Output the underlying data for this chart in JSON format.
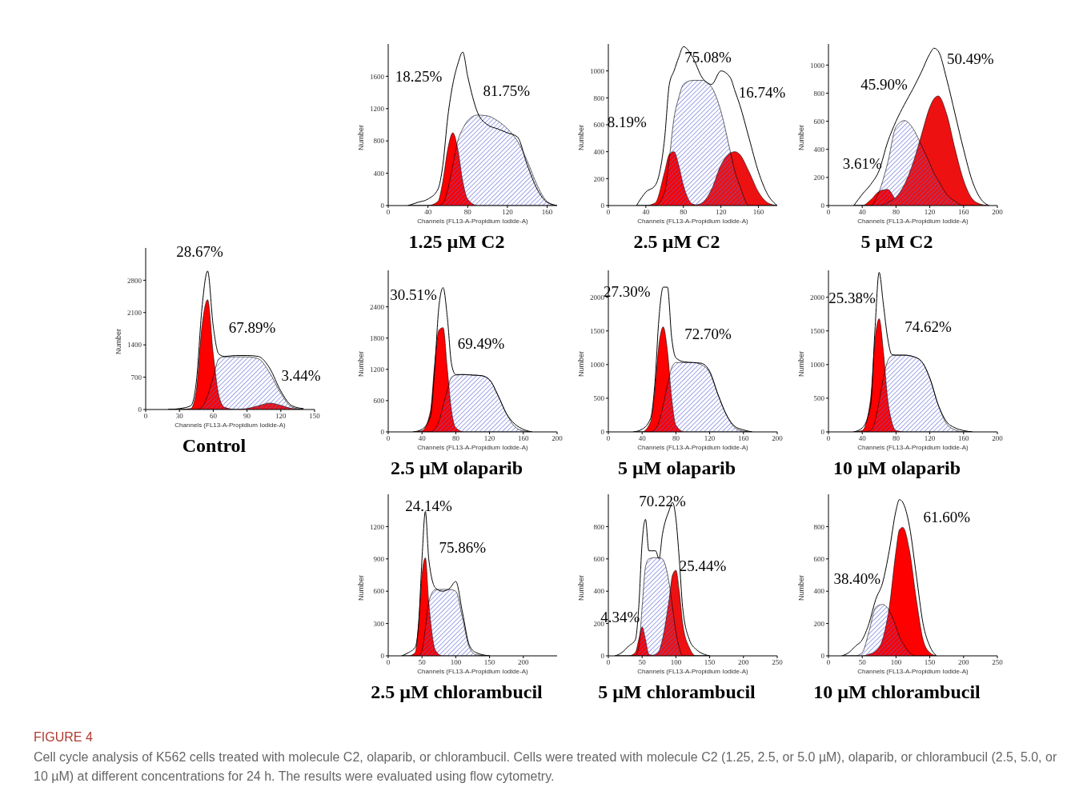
{
  "chart_data": [
    {
      "type": "area",
      "title": "1.25 µM C2",
      "xlabel": "Channels (FL13-A-Propidium Iodide-A)",
      "ylabel": "Number",
      "xlim": [
        0,
        170
      ],
      "xticks": [
        0,
        40,
        80,
        120,
        160
      ],
      "ylim": [
        0,
        2000
      ],
      "yticks": [
        0,
        400,
        800,
        1200,
        1600
      ],
      "grid": false,
      "legend": false,
      "x": [
        20,
        30,
        40,
        50,
        55,
        60,
        65,
        70,
        75,
        80,
        90,
        100,
        110,
        120,
        130,
        140,
        150,
        160,
        170
      ],
      "series": [
        {
          "type": "line",
          "color": "#000000",
          "values": [
            0,
            40,
            80,
            200,
            500,
            1100,
            1500,
            1750,
            1900,
            1600,
            1150,
            1000,
            950,
            900,
            850,
            500,
            200,
            40,
            0
          ]
        },
        {
          "color": "#5a62d6",
          "values": [
            0,
            0,
            0,
            0,
            30,
            200,
            500,
            800,
            950,
            1050,
            1120,
            1110,
            1050,
            950,
            800,
            550,
            250,
            50,
            0
          ]
        },
        {
          "color": "#ff0000",
          "values": [
            0,
            0,
            0,
            50,
            300,
            700,
            900,
            700,
            300,
            80,
            0,
            0,
            0,
            0,
            0,
            0,
            0,
            0,
            0
          ]
        }
      ],
      "annotations": [
        "18.25%",
        "81.75%"
      ]
    },
    {
      "type": "area",
      "title": "2.5 µM C2",
      "xlabel": "Channels (FL13-A-Propidium Iodide-A)",
      "ylabel": "Number",
      "xlim": [
        0,
        180
      ],
      "xticks": [
        0,
        40,
        80,
        120,
        160
      ],
      "ylim": [
        0,
        1200
      ],
      "yticks": [
        0,
        200,
        400,
        600,
        800,
        1000
      ],
      "grid": false,
      "legend": false,
      "x": [
        30,
        40,
        50,
        60,
        65,
        70,
        75,
        80,
        90,
        100,
        110,
        120,
        130,
        135,
        140,
        150,
        160,
        170,
        180
      ],
      "series": [
        {
          "type": "line",
          "color": "#000000",
          "values": [
            0,
            100,
            150,
            500,
            900,
            1000,
            1100,
            1180,
            1100,
            950,
            900,
            1000,
            950,
            850,
            750,
            500,
            250,
            80,
            0
          ]
        },
        {
          "color": "#5a62d6",
          "values": [
            0,
            0,
            0,
            100,
            350,
            650,
            800,
            900,
            930,
            930,
            880,
            700,
            400,
            250,
            150,
            0,
            0,
            0,
            0
          ]
        },
        {
          "color": "#ff0000",
          "values": [
            0,
            0,
            20,
            250,
            380,
            400,
            300,
            150,
            10,
            0,
            0,
            0,
            0,
            0,
            0,
            0,
            0,
            0,
            0
          ]
        },
        {
          "color": "#ee1111",
          "x": [
            90,
            100,
            110,
            120,
            130,
            135,
            140,
            150,
            160,
            170,
            180
          ],
          "values": [
            0,
            20,
            120,
            300,
            390,
            400,
            380,
            250,
            100,
            20,
            0
          ]
        }
      ],
      "annotations": [
        "8.19%",
        "75.08%",
        "16.74%"
      ]
    },
    {
      "type": "area",
      "title": "5 µM C2",
      "xlabel": "Channels (FL13-A-Propidium Iodide-A)",
      "ylabel": "Number",
      "xlim": [
        0,
        200
      ],
      "xticks": [
        0,
        40,
        80,
        120,
        160,
        200
      ],
      "ylim": [
        0,
        1150
      ],
      "yticks": [
        0,
        200,
        400,
        600,
        800,
        1000
      ],
      "grid": false,
      "legend": false,
      "x": [
        30,
        40,
        50,
        60,
        70,
        80,
        90,
        100,
        110,
        120,
        125,
        130,
        140,
        150,
        160,
        170,
        180,
        190
      ],
      "series": [
        {
          "type": "line",
          "color": "#000000",
          "values": [
            0,
            80,
            150,
            250,
            450,
            600,
            720,
            830,
            950,
            1080,
            1120,
            1100,
            900,
            650,
            400,
            180,
            50,
            0
          ]
        },
        {
          "color": "#5a62d6",
          "values": [
            0,
            0,
            0,
            100,
            300,
            560,
            605,
            550,
            430,
            300,
            230,
            180,
            80,
            30,
            0,
            0,
            0,
            0
          ]
        },
        {
          "color": "#ff0000",
          "values": [
            0,
            0,
            40,
            100,
            115,
            40,
            0,
            0,
            0,
            0,
            0,
            0,
            0,
            0,
            0,
            0,
            0,
            0
          ]
        },
        {
          "color": "#ee1111",
          "values": [
            0,
            0,
            0,
            0,
            20,
            60,
            150,
            300,
            500,
            700,
            760,
            780,
            650,
            400,
            180,
            50,
            10,
            0
          ]
        }
      ],
      "annotations": [
        "3.61%",
        "45.90%",
        "50.49%"
      ]
    },
    {
      "type": "area",
      "title": "Control",
      "xlabel": "Channels (FL13-A-Propidium Iodide-A)",
      "ylabel": "Number",
      "xlim": [
        0,
        150
      ],
      "xticks": [
        0,
        30,
        60,
        90,
        120,
        150
      ],
      "ylim": [
        0,
        3500
      ],
      "yticks": [
        0,
        700,
        1400,
        2100,
        2800
      ],
      "grid": false,
      "legend": false,
      "x": [
        20,
        30,
        40,
        45,
        50,
        55,
        60,
        65,
        70,
        80,
        90,
        100,
        110,
        120,
        130,
        140
      ],
      "series": [
        {
          "type": "line",
          "color": "#000000",
          "values": [
            0,
            20,
            80,
            600,
            2200,
            3000,
            1800,
            1200,
            1150,
            1170,
            1170,
            1150,
            900,
            400,
            80,
            20
          ]
        },
        {
          "color": "#5a62d6",
          "values": [
            0,
            0,
            0,
            0,
            50,
            300,
            700,
            1100,
            1140,
            1140,
            1140,
            1100,
            800,
            350,
            50,
            0
          ]
        },
        {
          "color": "#ff0000",
          "values": [
            0,
            0,
            20,
            400,
            1800,
            2380,
            1200,
            300,
            50,
            0,
            0,
            0,
            0,
            0,
            0,
            0
          ]
        },
        {
          "color": "#ee1111",
          "values": [
            0,
            0,
            0,
            0,
            0,
            0,
            0,
            0,
            0,
            0,
            20,
            80,
            140,
            90,
            20,
            0
          ]
        }
      ],
      "annotations": [
        "28.67%",
        "67.89%",
        "3.44%"
      ]
    },
    {
      "type": "area",
      "title": "2.5 µM olaparib",
      "xlabel": "Channels (FL13-A-Propidium Iodide-A)",
      "ylabel": "Number",
      "xlim": [
        0,
        200
      ],
      "xticks": [
        0,
        40,
        80,
        120,
        160,
        200
      ],
      "ylim": [
        0,
        3100
      ],
      "yticks": [
        0,
        600,
        1200,
        1800,
        2400
      ],
      "grid": false,
      "legend": false,
      "x": [
        30,
        40,
        50,
        55,
        60,
        65,
        70,
        75,
        80,
        90,
        100,
        110,
        120,
        130,
        140,
        150,
        160,
        170
      ],
      "series": [
        {
          "type": "line",
          "color": "#000000",
          "values": [
            0,
            50,
            300,
            1200,
            2400,
            2770,
            2200,
            1300,
            1100,
            1100,
            1090,
            1080,
            1000,
            700,
            350,
            150,
            50,
            0
          ]
        },
        {
          "color": "#5a62d6",
          "values": [
            0,
            0,
            0,
            50,
            200,
            500,
            800,
            1050,
            1090,
            1100,
            1090,
            1080,
            1000,
            700,
            350,
            100,
            20,
            0
          ]
        },
        {
          "color": "#ff0000",
          "values": [
            0,
            20,
            400,
            1300,
            1950,
            2000,
            1200,
            400,
            80,
            0,
            0,
            0,
            0,
            0,
            0,
            0,
            0,
            0
          ]
        }
      ],
      "annotations": [
        "30.51%",
        "69.49%"
      ]
    },
    {
      "type": "area",
      "title": "5 µM olaparib",
      "xlabel": "Channels (FL13-A-Propidium Iodide-A)",
      "ylabel": "Number",
      "xlim": [
        0,
        200
      ],
      "xticks": [
        0,
        40,
        80,
        120,
        160,
        200
      ],
      "ylim": [
        0,
        2400
      ],
      "yticks": [
        0,
        500,
        1000,
        1500,
        2000
      ],
      "grid": false,
      "legend": false,
      "x": [
        30,
        40,
        50,
        55,
        60,
        65,
        70,
        75,
        80,
        90,
        100,
        110,
        120,
        130,
        140,
        150,
        160,
        170
      ],
      "series": [
        {
          "type": "line",
          "color": "#000000",
          "values": [
            0,
            40,
            200,
            700,
            1700,
            2150,
            2150,
            1400,
            1100,
            1040,
            1030,
            1020,
            900,
            550,
            250,
            80,
            30,
            0
          ]
        },
        {
          "color": "#5a62d6",
          "values": [
            0,
            0,
            0,
            30,
            150,
            400,
            700,
            950,
            1030,
            1030,
            1030,
            1000,
            880,
            550,
            250,
            60,
            10,
            0
          ]
        },
        {
          "color": "#ff0000",
          "values": [
            0,
            0,
            150,
            600,
            1300,
            1560,
            1200,
            500,
            100,
            0,
            0,
            0,
            0,
            0,
            0,
            0,
            0,
            0
          ]
        }
      ],
      "annotations": [
        "27.30%",
        "72.70%"
      ]
    },
    {
      "type": "area",
      "title": "10 µM olaparib",
      "xlabel": "Channels (FL13-A-Propidium Iodide-A)",
      "ylabel": "Number",
      "xlim": [
        0,
        200
      ],
      "xticks": [
        0,
        40,
        80,
        120,
        160,
        200
      ],
      "ylim": [
        0,
        2400
      ],
      "yticks": [
        0,
        500,
        1000,
        1500,
        2000
      ],
      "grid": false,
      "legend": false,
      "x": [
        30,
        40,
        50,
        55,
        60,
        65,
        70,
        75,
        80,
        90,
        100,
        110,
        120,
        130,
        140,
        150,
        160,
        170
      ],
      "series": [
        {
          "type": "line",
          "color": "#000000",
          "values": [
            0,
            60,
            400,
            1500,
            2370,
            1900,
            1400,
            1150,
            1140,
            1140,
            1120,
            1050,
            800,
            400,
            150,
            60,
            20,
            0
          ]
        },
        {
          "color": "#5a62d6",
          "values": [
            0,
            0,
            20,
            150,
            450,
            800,
            1050,
            1130,
            1140,
            1140,
            1120,
            1050,
            800,
            400,
            120,
            30,
            0,
            0
          ]
        },
        {
          "color": "#ff0000",
          "values": [
            0,
            20,
            500,
            1350,
            1680,
            1200,
            500,
            150,
            20,
            0,
            0,
            0,
            0,
            0,
            0,
            0,
            0,
            0
          ]
        }
      ],
      "annotations": [
        "25.38%",
        "74.62%"
      ]
    },
    {
      "type": "area",
      "title": "2.5 µM chlorambucil",
      "xlabel": "Channels (FL13-A-Propidium Iodide-A)",
      "ylabel": "Number",
      "xlim": [
        0,
        250
      ],
      "xticks": [
        0,
        50,
        100,
        150,
        200
      ],
      "ylim": [
        0,
        1500
      ],
      "yticks": [
        0,
        300,
        600,
        900,
        1200
      ],
      "grid": false,
      "legend": false,
      "x": [
        20,
        30,
        40,
        45,
        50,
        55,
        60,
        70,
        80,
        90,
        100,
        110,
        120,
        130,
        150
      ],
      "series": [
        {
          "type": "line",
          "color": "#000000",
          "values": [
            0,
            30,
            80,
            300,
            900,
            1340,
            900,
            630,
            600,
            620,
            690,
            400,
            100,
            30,
            0
          ]
        },
        {
          "color": "#5a62d6",
          "values": [
            0,
            0,
            0,
            0,
            50,
            250,
            500,
            615,
            617,
            617,
            600,
            350,
            80,
            10,
            0
          ]
        },
        {
          "color": "#ff0000",
          "values": [
            0,
            0,
            30,
            300,
            750,
            910,
            500,
            50,
            0,
            0,
            0,
            0,
            0,
            0,
            0
          ]
        }
      ],
      "annotations": [
        "24.14%",
        "75.86%"
      ]
    },
    {
      "type": "area",
      "title": "5 µM chlorambucil",
      "xlabel": "Channels (FL13-A-Propidium Iodide-A)",
      "ylabel": "Number",
      "xlim": [
        0,
        250
      ],
      "xticks": [
        0,
        50,
        100,
        150,
        200,
        250
      ],
      "ylim": [
        0,
        1000
      ],
      "yticks": [
        0,
        200,
        400,
        600,
        800
      ],
      "grid": false,
      "legend": false,
      "x": [
        10,
        20,
        30,
        40,
        45,
        50,
        55,
        60,
        70,
        75,
        80,
        90,
        95,
        100,
        105,
        110,
        120,
        130,
        150
      ],
      "series": [
        {
          "type": "line",
          "color": "#000000",
          "values": [
            0,
            20,
            60,
            100,
            300,
            700,
            845,
            650,
            650,
            600,
            750,
            900,
            950,
            850,
            600,
            300,
            100,
            40,
            0
          ]
        },
        {
          "color": "#5a62d6",
          "values": [
            0,
            0,
            0,
            0,
            50,
            300,
            550,
            600,
            608,
            608,
            600,
            450,
            300,
            150,
            50,
            0,
            0,
            0,
            0
          ]
        },
        {
          "color": "#ff0000",
          "values": [
            0,
            0,
            0,
            20,
            100,
            180,
            100,
            10,
            0,
            0,
            0,
            0,
            0,
            0,
            0,
            0,
            0,
            0,
            0
          ]
        },
        {
          "color": "#ee1111",
          "values": [
            0,
            0,
            0,
            0,
            0,
            0,
            0,
            0,
            10,
            30,
            100,
            350,
            500,
            530,
            400,
            200,
            50,
            0,
            0
          ]
        }
      ],
      "annotations": [
        "4.34%",
        "70.22%",
        "25.44%"
      ]
    },
    {
      "type": "area",
      "title": "10 µM chlorambucil",
      "xlabel": "Channels (FL13-A-Propidium Iodide-A)",
      "ylabel": "Number",
      "xlim": [
        0,
        250
      ],
      "xticks": [
        0,
        50,
        100,
        150,
        200,
        250
      ],
      "ylim": [
        0,
        1000
      ],
      "yticks": [
        0,
        200,
        400,
        600,
        800
      ],
      "grid": false,
      "legend": false,
      "x": [
        20,
        30,
        40,
        50,
        60,
        70,
        80,
        90,
        100,
        105,
        110,
        120,
        130,
        140,
        150,
        160
      ],
      "series": [
        {
          "type": "line",
          "color": "#000000",
          "values": [
            0,
            20,
            60,
            100,
            200,
            350,
            450,
            650,
            900,
            967,
            950,
            800,
            500,
            200,
            60,
            0
          ]
        },
        {
          "color": "#5a62d6",
          "values": [
            0,
            0,
            0,
            20,
            150,
            300,
            318,
            280,
            180,
            120,
            80,
            20,
            0,
            0,
            0,
            0
          ]
        },
        {
          "color": "#ff0000",
          "values": [
            0,
            0,
            0,
            0,
            10,
            30,
            100,
            300,
            650,
            780,
            795,
            650,
            350,
            100,
            20,
            0
          ]
        }
      ],
      "annotations": [
        "38.40%",
        "61.60%"
      ]
    },
    {
      "type": "other",
      "title": "FIGURE 4",
      "annotations": [
        "Cell cycle analysis of K562 cells treated with molecule C2, olaparib, or chlorambucil. Cells were treated with molecule C2 (1.25, 2.5, or 5.0 µM), olaparib, or chlorambucil (2.5, 5.0, or 10 µM) at different concentrations for 24 h. The results were evaluated using flow cytometry."
      ]
    }
  ]
}
